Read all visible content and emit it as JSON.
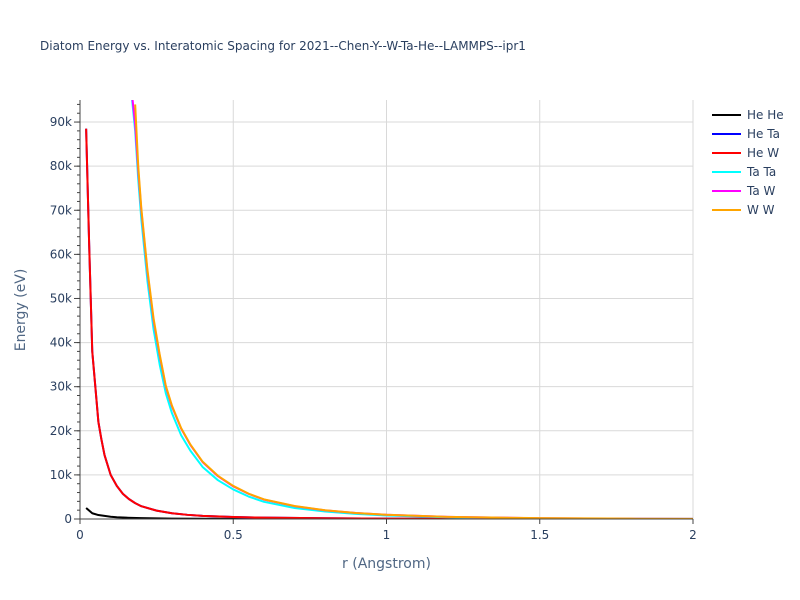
{
  "chart_data": {
    "type": "line",
    "title": "Diatom Energy vs. Interatomic Spacing for 2021--Chen-Y--W-Ta-He--LAMMPS--ipr1",
    "xlabel": "r (Angstrom)",
    "ylabel": "Energy (eV)",
    "xlim": [
      0,
      2
    ],
    "ylim": [
      0,
      95000
    ],
    "x_ticks": [
      0,
      0.5,
      1,
      1.5,
      2
    ],
    "x_tick_labels": [
      "0",
      "0.5",
      "1",
      "1.5",
      "2"
    ],
    "y_ticks": [
      0,
      10000,
      20000,
      30000,
      40000,
      50000,
      60000,
      70000,
      80000,
      90000
    ],
    "y_tick_labels": [
      "0",
      "10k",
      "20k",
      "30k",
      "40k",
      "50k",
      "60k",
      "70k",
      "80k",
      "90k"
    ],
    "grid": true,
    "legend_position": "right",
    "series": [
      {
        "name": "He He",
        "color": "#000000",
        "x": [
          0.02,
          0.04,
          0.06,
          0.08,
          0.1,
          0.12,
          0.15,
          0.2,
          0.25,
          0.3,
          0.4,
          0.5,
          0.7,
          1.0,
          1.5,
          2.0
        ],
        "y": [
          2500,
          1300,
          900,
          700,
          500,
          400,
          300,
          200,
          130,
          90,
          50,
          30,
          15,
          5,
          1,
          0
        ]
      },
      {
        "name": "He Ta",
        "color": "#0000ff",
        "x": [
          0.02,
          0.03,
          0.04,
          0.05,
          0.06,
          0.07,
          0.08,
          0.1,
          0.12,
          0.14,
          0.16,
          0.18,
          0.2,
          0.25,
          0.3,
          0.35,
          0.4,
          0.5,
          0.6,
          0.8,
          1.0,
          1.2,
          1.5,
          2.0
        ],
        "y": [
          88500,
          62000,
          38000,
          30000,
          22000,
          18000,
          14500,
          10000,
          7500,
          5700,
          4500,
          3600,
          2900,
          1900,
          1300,
          950,
          700,
          450,
          300,
          160,
          90,
          50,
          20,
          5
        ]
      },
      {
        "name": "He W",
        "color": "#ff0000",
        "x": [
          0.02,
          0.03,
          0.04,
          0.05,
          0.06,
          0.07,
          0.08,
          0.1,
          0.12,
          0.14,
          0.16,
          0.18,
          0.2,
          0.25,
          0.3,
          0.35,
          0.4,
          0.5,
          0.6,
          0.8,
          1.0,
          1.2,
          1.5,
          2.0
        ],
        "y": [
          88500,
          62000,
          38000,
          30000,
          22000,
          18000,
          14500,
          10000,
          7500,
          5700,
          4500,
          3600,
          2900,
          1900,
          1300,
          950,
          700,
          450,
          300,
          160,
          90,
          50,
          20,
          5
        ]
      },
      {
        "name": "Ta Ta",
        "color": "#00ffff",
        "x": [
          0.17,
          0.18,
          0.19,
          0.2,
          0.22,
          0.24,
          0.26,
          0.28,
          0.3,
          0.33,
          0.36,
          0.4,
          0.45,
          0.5,
          0.55,
          0.6,
          0.7,
          0.8,
          0.9,
          1.0,
          1.2,
          1.5,
          1.8,
          2.0
        ],
        "y": [
          95000,
          88000,
          77000,
          68000,
          54000,
          43000,
          35000,
          28500,
          24000,
          19000,
          15500,
          11800,
          8800,
          6700,
          5100,
          3900,
          2500,
          1700,
          1150,
          800,
          400,
          150,
          60,
          30
        ]
      },
      {
        "name": "Ta W",
        "color": "#ff00ff",
        "x": [
          0.17,
          0.18,
          0.19,
          0.2,
          0.22,
          0.24,
          0.26,
          0.28,
          0.3,
          0.33,
          0.36,
          0.4,
          0.45,
          0.5,
          0.55,
          0.6,
          0.7,
          0.8,
          0.9,
          1.0,
          1.2,
          1.5,
          1.8,
          2.0
        ],
        "y": [
          96000,
          89500,
          79000,
          70000,
          56000,
          45000,
          37000,
          30000,
          25500,
          20500,
          16800,
          12900,
          9700,
          7400,
          5700,
          4400,
          2900,
          1950,
          1350,
          950,
          480,
          180,
          70,
          35
        ]
      },
      {
        "name": "W W",
        "color": "#ffa500",
        "x": [
          0.18,
          0.19,
          0.2,
          0.22,
          0.24,
          0.26,
          0.28,
          0.3,
          0.33,
          0.36,
          0.4,
          0.45,
          0.5,
          0.55,
          0.6,
          0.7,
          0.8,
          0.9,
          1.0,
          1.2,
          1.5,
          1.8,
          2.0
        ],
        "y": [
          94000,
          80000,
          70500,
          56500,
          45500,
          37300,
          30200,
          25700,
          20600,
          16900,
          13000,
          9800,
          7500,
          5750,
          4450,
          2950,
          1980,
          1370,
          960,
          490,
          185,
          72,
          36
        ]
      }
    ]
  }
}
